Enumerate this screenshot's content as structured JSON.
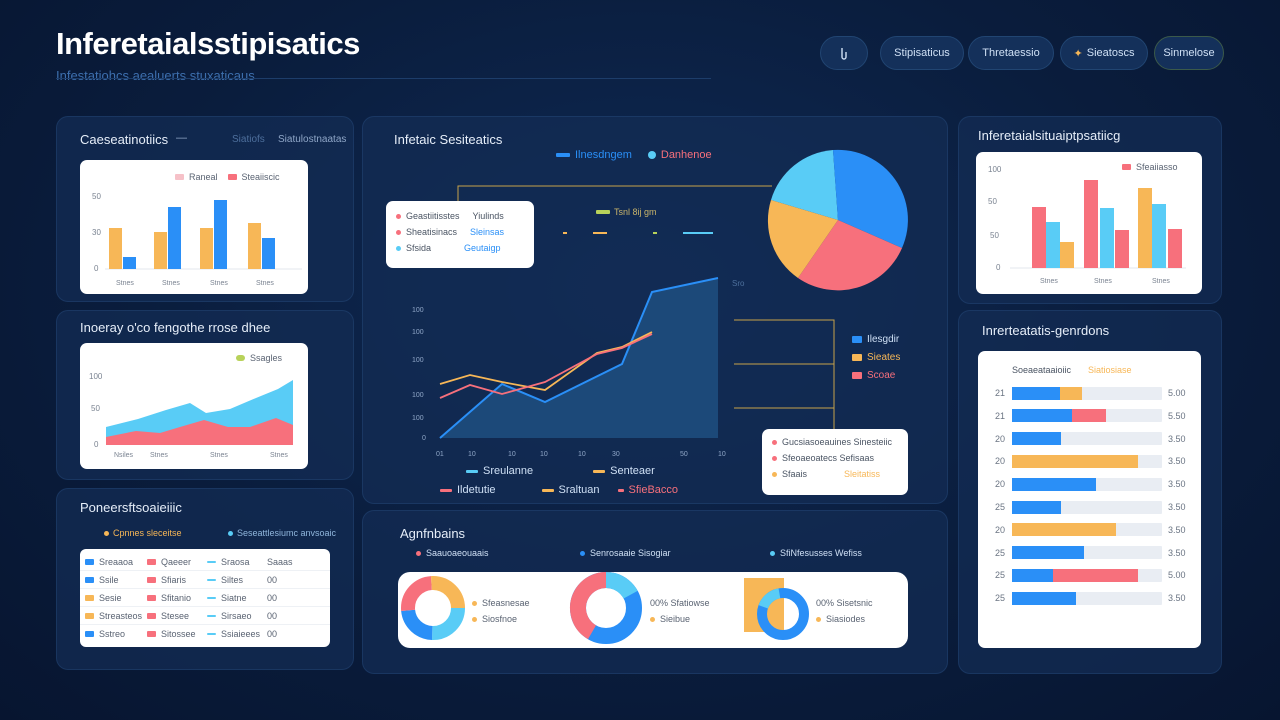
{
  "header": {
    "title": "Inferetaialsstipisatics",
    "subtitle": "Infestatiohcs aealuerts stuxaticaus",
    "buttons": [
      {
        "label": "",
        "icon": "share-icon"
      },
      {
        "label": "Stipisaticus",
        "icon": ""
      },
      {
        "label": "Thretaessio",
        "icon": ""
      },
      {
        "label": "Sieatoscs",
        "icon": "sparkle-icon"
      },
      {
        "label": "Sinmelose",
        "icon": ""
      }
    ]
  },
  "panel_bar": {
    "title": "Caeseatinotiics",
    "header_links": [
      "—",
      "Siatiofs",
      "Siatulostnaatas"
    ],
    "legend": [
      "Raneal",
      "Steaiiscic"
    ],
    "colors": [
      "#f7b757",
      "#2a8ff7"
    ],
    "categories": [
      "Stnes",
      "Stnes",
      "Stnes",
      "Stnes"
    ],
    "yticks": [
      "50",
      "30",
      "0"
    ]
  },
  "panel_area": {
    "title": "Inoeray o'co fengothe rrose dhee",
    "legend": "Ssagles",
    "categories": [
      "Nsiles",
      "Stnes",
      "Stnes",
      "Stnes"
    ],
    "yticks": [
      "100",
      "50",
      "0"
    ],
    "colors": [
      "#59ccf6",
      "#f7707c"
    ]
  },
  "panel_table": {
    "title": "Poneersftsoaieiiic",
    "header_links": [
      "Cpnnes sleceitse",
      "Seseattlesiumc anvsoaic"
    ],
    "rows": [
      [
        "Sreaaoa",
        "Qaeeer",
        "Sraosa",
        "Saaas"
      ],
      [
        "Ssile",
        "Sfiaris",
        "Siltes",
        "00"
      ],
      [
        "Sesie",
        "Sfitanio",
        "Siatne",
        "00"
      ],
      [
        "Streasteos",
        "Stesee",
        "Sirsaeo",
        "00"
      ],
      [
        "Sstreo",
        "Sitossee",
        "Ssiaieees",
        "00"
      ]
    ],
    "row_colors": [
      [
        "#2a8ff7",
        "#f7707c",
        "#59ccf6"
      ],
      [
        "#2a8ff7",
        "#f7707c",
        "#59ccf6"
      ],
      [
        "#f7b757",
        "#f7707c",
        "#59ccf6"
      ],
      [
        "#f7b757",
        "#f7707c",
        "#59ccf6"
      ],
      [
        "#2a8ff7",
        "#f7707c",
        "#59ccf6"
      ]
    ]
  },
  "panel_center": {
    "title": "Infetaic Sesiteatics",
    "legend": [
      "Ilnesdngem",
      "Danhenoe"
    ],
    "legend_colors": [
      "#2a8ff7",
      "#59ccf6"
    ],
    "info_card": {
      "rows": [
        {
          "label": "Geastiitisstes",
          "value": "Yiulinds",
          "color": "#f7707c"
        },
        {
          "label": "Sheatisinacs",
          "value": "Sleinsas",
          "color": "#f7707c"
        },
        {
          "label": "Sfsida",
          "value": "Geutaigp",
          "color": "#59ccf6"
        }
      ]
    },
    "mini_legend": "Tsnl 8ij gm",
    "chart_ticks_y": [
      "100",
      "100",
      "100",
      "100",
      "100",
      "0"
    ],
    "chart_ticks_x": [
      "01",
      "10",
      "10",
      "10",
      "10",
      "30",
      "50",
      "10"
    ],
    "chart_side_label": "Sro",
    "bottom_legend": [
      {
        "label": "Sreulanne",
        "color": "#59ccf6"
      },
      {
        "label": "Senteaer",
        "color": "#f7b757"
      },
      {
        "label": "Ildetutie",
        "color": "#f7707c"
      },
      {
        "label": "Sraltuan",
        "color": "#f7b757"
      },
      {
        "label": "SfieBacco",
        "color": "#f7707c"
      }
    ],
    "pie_legend": [
      {
        "label": "Ilesgdir",
        "color": "#2a8ff7"
      },
      {
        "label": "Sieates",
        "color": "#f7b757"
      },
      {
        "label": "Scoae",
        "color": "#f7707c"
      }
    ],
    "detail_card": [
      {
        "label": "Gucsiasoeauines Sinesteiic",
        "color": "#f7707c"
      },
      {
        "label": "Sfeoaeoatecs Sefisaas",
        "color": "#f7707c"
      },
      {
        "label": "Sfaais",
        "value": "Sleitatiss",
        "color": "#f7b757"
      }
    ]
  },
  "panel_agr": {
    "title": "Agnfnbains",
    "legends": [
      "Saauoaeouaais",
      "Senrosaaie Sisogiar",
      "SfiNfesusses Wefiss"
    ],
    "legend_colors": [
      "#f7707c",
      "#2a8ff7",
      "#59ccf6"
    ],
    "donut_labels": [
      [
        "Sfeasnesae",
        "Siosfnoe"
      ],
      [
        "00% Sfatiowse",
        "Sieibue"
      ],
      [
        "00% Sisetsnic",
        "Siasiodes"
      ]
    ]
  },
  "panel_right_top": {
    "title": "Inferetaialsituaiptpsatiicg",
    "legend": "Sfeaiiasso",
    "yticks": [
      "100",
      "50",
      "50",
      "0"
    ],
    "categories": [
      "Stnes",
      "Stnes",
      "Stnes"
    ],
    "colors": [
      "#f7707c",
      "#59ccf6",
      "#f7b757"
    ]
  },
  "panel_right_bottom": {
    "title": "Inrerteatatis-genrdons",
    "card_title": "Soeaeataaioiic",
    "card_sub": "Siatiosiase",
    "rows": [
      {
        "label": "21",
        "value": "5.00"
      },
      {
        "label": "21",
        "value": "5.50"
      },
      {
        "label": "20",
        "value": "3.50"
      },
      {
        "label": "20",
        "value": "3.50"
      },
      {
        "label": "20",
        "value": "3.50"
      },
      {
        "label": "25",
        "value": "3.50"
      },
      {
        "label": "20",
        "value": "3.50"
      },
      {
        "label": "25",
        "value": "3.50"
      },
      {
        "label": "25",
        "value": "5.00"
      },
      {
        "label": "25",
        "value": "3.50"
      }
    ]
  }
}
